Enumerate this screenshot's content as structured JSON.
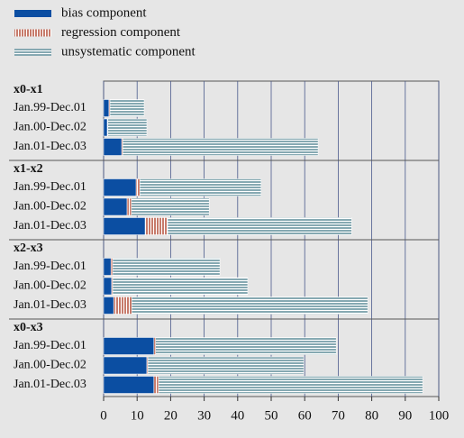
{
  "chart_data": {
    "type": "bar",
    "orientation": "horizontal",
    "stacked": true,
    "groups": [
      {
        "name": "x0-x1",
        "categories": [
          "Jan.99-Dec.01",
          "Jan.00-Dec.02",
          "Jan.01-Dec.03"
        ]
      },
      {
        "name": "x1-x2",
        "categories": [
          "Jan.99-Dec.01",
          "Jan.00-Dec.02",
          "Jan.01-Dec.03"
        ]
      },
      {
        "name": "x2-x3",
        "categories": [
          "Jan.99-Dec.01",
          "Jan.00-Dec.02",
          "Jan.01-Dec.03"
        ]
      },
      {
        "name": "x0-x3",
        "categories": [
          "Jan.99-Dec.01",
          "Jan.00-Dec.02",
          "Jan.01-Dec.03"
        ]
      }
    ],
    "series": [
      {
        "name": "bias component",
        "color": "#0b4ea2",
        "pattern": "solid",
        "values": [
          [
            1.6,
            1.1,
            5.4
          ],
          [
            9.7,
            7.0,
            12.4
          ],
          [
            2.2,
            2.4,
            3.0
          ],
          [
            15.0,
            12.9,
            15.0
          ]
        ]
      },
      {
        "name": "regression component",
        "color": "#c77b6b",
        "pattern": "vertical",
        "values": [
          [
            0.3,
            0.2,
            0.3
          ],
          [
            1.1,
            1.3,
            6.7
          ],
          [
            0.5,
            0.3,
            5.4
          ],
          [
            0.5,
            0.3,
            1.4
          ]
        ]
      },
      {
        "name": "unsystematic component",
        "color": "#86a9b2",
        "pattern": "horizontal",
        "values": [
          [
            10.2,
            11.6,
            58.3
          ],
          [
            36.2,
            23.2,
            54.9
          ],
          [
            32.0,
            40.3,
            70.4
          ],
          [
            53.9,
            46.5,
            78.8
          ]
        ]
      }
    ],
    "xlim": [
      0,
      100
    ],
    "xticks": [
      0,
      10,
      20,
      30,
      40,
      50,
      60,
      70,
      80,
      90,
      100
    ],
    "grid": true
  }
}
